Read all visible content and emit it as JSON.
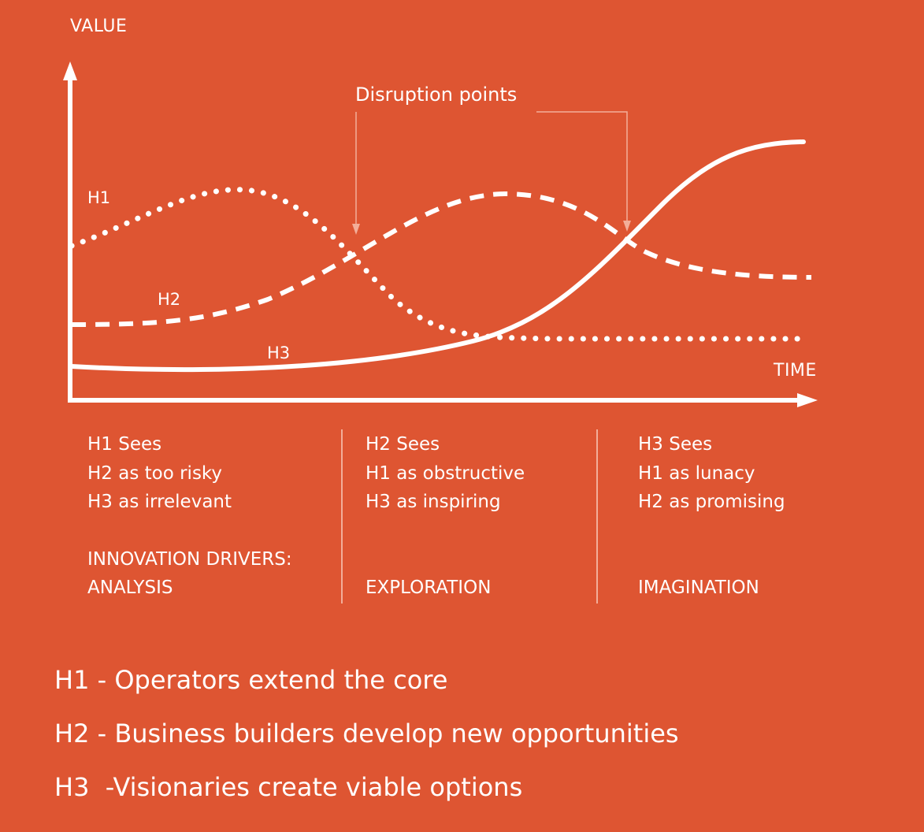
{
  "axes": {
    "y_label": "VALUE",
    "x_label": "TIME"
  },
  "callout": {
    "label": "Disruption points"
  },
  "curves": [
    {
      "id": "H1",
      "label": "H1",
      "style": "dotted"
    },
    {
      "id": "H2",
      "label": "H2",
      "style": "dashed"
    },
    {
      "id": "H3",
      "label": "H3",
      "style": "solid"
    }
  ],
  "columns": [
    {
      "lines": [
        "H1 Sees",
        "H2 as too risky",
        "H3 as irrelevant"
      ],
      "drivers_heading": "INNOVATION DRIVERS:",
      "driver": "ANALYSIS"
    },
    {
      "lines": [
        "H2 Sees",
        "H1 as obstructive",
        "H3 as inspiring"
      ],
      "drivers_heading": "",
      "driver": "EXPLORATION"
    },
    {
      "lines": [
        "H3 Sees",
        "H1 as lunacy",
        "H2 as promising"
      ],
      "drivers_heading": "",
      "driver": "IMAGINATION"
    }
  ],
  "legend": [
    "H1 - Operators extend the core",
    "H2 - Business builders develop new opportunities",
    "H3  -Visionaries create viable options"
  ],
  "colors": {
    "background": "#DE5532",
    "foreground": "#FFFFFF",
    "thin_lines": "#F3AE99"
  }
}
